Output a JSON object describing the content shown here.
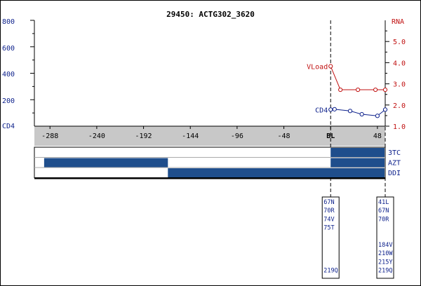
{
  "chart_data": {
    "type": "line",
    "title": "29450: ACTG302_3620",
    "x_ticks": [
      -288,
      -240,
      -192,
      -144,
      -96,
      -48,
      0,
      48
    ],
    "x_tick_labels": [
      "-288",
      "-240",
      "-192",
      "-144",
      "-96",
      "-48",
      "BL",
      "48"
    ],
    "xlim": [
      -304,
      56
    ],
    "left_axis": {
      "label": "CD4",
      "ticks": [
        200,
        400,
        600,
        800
      ],
      "ylim": [
        0,
        800
      ]
    },
    "right_axis": {
      "label": "RNA",
      "ticks": [
        1.0,
        2.0,
        3.0,
        4.0,
        5.0
      ],
      "ylim": [
        1.0,
        6.0
      ]
    },
    "series": [
      {
        "name": "CD4",
        "axis": "left",
        "color": "#0a1e8a",
        "x": [
          0,
          4,
          20,
          32,
          48,
          56
        ],
        "y": [
          125,
          128,
          115,
          90,
          78,
          125
        ]
      },
      {
        "name": "VLoad",
        "axis": "right",
        "color": "#c01010",
        "x": [
          0,
          10,
          28,
          46,
          56
        ],
        "y": [
          3.83,
          2.72,
          2.72,
          2.72,
          2.72
        ]
      }
    ],
    "reference_lines_x": [
      0,
      56
    ],
    "drugs": [
      {
        "name": "3TC",
        "periods": [
          [
            0,
            58
          ]
        ]
      },
      {
        "name": "AZT",
        "periods": [
          [
            -294,
            -167
          ],
          [
            0,
            58
          ]
        ]
      },
      {
        "name": "DDI",
        "periods": [
          [
            -167,
            58
          ]
        ]
      }
    ],
    "mutation_panels": [
      {
        "x": 0,
        "mutations": [
          "67N",
          "70R",
          "74V",
          "75T",
          "",
          "",
          "",
          "",
          "219Q"
        ]
      },
      {
        "x": 56,
        "mutations": [
          "41L",
          "67N",
          "70R",
          "",
          "",
          "184V",
          "210W",
          "215Y",
          "219Q"
        ]
      }
    ],
    "colors": {
      "cd4": "#0a1e8a",
      "rna": "#c01010",
      "drug_bar": "#1f4e8c",
      "x_band": "#c8c8c8"
    }
  }
}
